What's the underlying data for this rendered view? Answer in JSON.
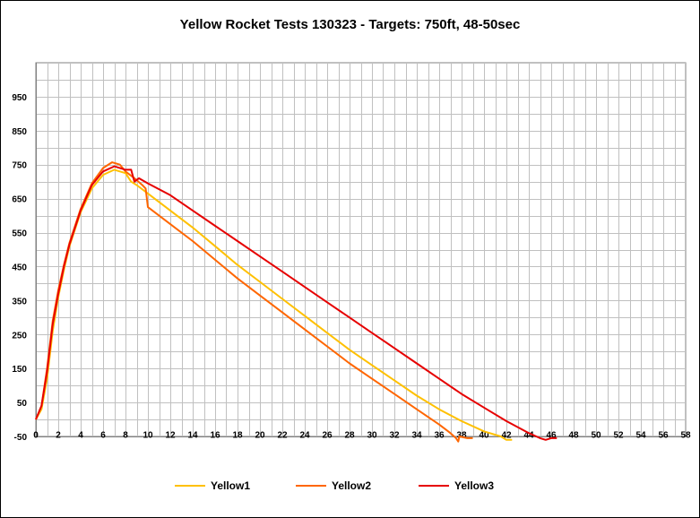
{
  "chart_data": {
    "type": "line",
    "title": "Yellow Rocket Tests 130323 - Targets: 750ft, 48-50sec",
    "xlabel": "",
    "ylabel": "",
    "xlim": [
      0,
      58
    ],
    "ylim": [
      -50,
      1050
    ],
    "x_ticks": [
      0,
      2,
      4,
      6,
      8,
      10,
      12,
      14,
      16,
      18,
      20,
      22,
      24,
      26,
      28,
      30,
      32,
      34,
      36,
      38,
      40,
      42,
      44,
      46,
      48,
      50,
      52,
      54,
      56,
      58
    ],
    "y_ticks": [
      -50,
      50,
      150,
      250,
      350,
      450,
      550,
      650,
      750,
      850,
      950
    ],
    "grid": true,
    "legend_position": "bottom",
    "series": [
      {
        "name": "Yellow1",
        "color": "#FFC000",
        "points": [
          [
            0,
            0
          ],
          [
            0.5,
            30
          ],
          [
            1,
            120
          ],
          [
            1.5,
            260
          ],
          [
            2,
            360
          ],
          [
            2.5,
            440
          ],
          [
            3,
            510
          ],
          [
            4,
            610
          ],
          [
            5,
            680
          ],
          [
            6,
            720
          ],
          [
            7,
            735
          ],
          [
            8,
            725
          ],
          [
            8.5,
            700
          ],
          [
            9,
            690
          ],
          [
            10,
            665
          ],
          [
            12,
            615
          ],
          [
            14,
            565
          ],
          [
            16,
            510
          ],
          [
            18,
            455
          ],
          [
            20,
            405
          ],
          [
            22,
            355
          ],
          [
            24,
            305
          ],
          [
            26,
            255
          ],
          [
            28,
            205
          ],
          [
            30,
            160
          ],
          [
            32,
            115
          ],
          [
            34,
            70
          ],
          [
            36,
            30
          ],
          [
            38,
            -5
          ],
          [
            40,
            -35
          ],
          [
            41.5,
            -50
          ],
          [
            42,
            -60
          ],
          [
            42.5,
            -60
          ]
        ]
      },
      {
        "name": "Yellow2",
        "color": "#FF6600",
        "points": [
          [
            0,
            0
          ],
          [
            0.5,
            40
          ],
          [
            1,
            150
          ],
          [
            1.5,
            290
          ],
          [
            2,
            380
          ],
          [
            2.5,
            455
          ],
          [
            3,
            520
          ],
          [
            4,
            620
          ],
          [
            5,
            695
          ],
          [
            6,
            740
          ],
          [
            6.8,
            757
          ],
          [
            7.5,
            750
          ],
          [
            8,
            730
          ],
          [
            8.8,
            710
          ],
          [
            9.5,
            690
          ],
          [
            9.8,
            680
          ],
          [
            10,
            625
          ],
          [
            12,
            575
          ],
          [
            14,
            525
          ],
          [
            16,
            470
          ],
          [
            18,
            415
          ],
          [
            20,
            365
          ],
          [
            22,
            315
          ],
          [
            24,
            265
          ],
          [
            26,
            215
          ],
          [
            28,
            165
          ],
          [
            30,
            120
          ],
          [
            32,
            75
          ],
          [
            34,
            30
          ],
          [
            36,
            -15
          ],
          [
            37,
            -40
          ],
          [
            37.5,
            -55
          ],
          [
            37.7,
            -65
          ],
          [
            37.8,
            -50
          ],
          [
            38.5,
            -55
          ],
          [
            39,
            -55
          ]
        ]
      },
      {
        "name": "Yellow3",
        "color": "#E60000",
        "points": [
          [
            0,
            0
          ],
          [
            0.5,
            40
          ],
          [
            1,
            140
          ],
          [
            1.5,
            280
          ],
          [
            2,
            370
          ],
          [
            2.5,
            450
          ],
          [
            3,
            515
          ],
          [
            4,
            615
          ],
          [
            5,
            690
          ],
          [
            6,
            730
          ],
          [
            7,
            745
          ],
          [
            8,
            735
          ],
          [
            8.5,
            735
          ],
          [
            8.8,
            700
          ],
          [
            9.2,
            710
          ],
          [
            10,
            695
          ],
          [
            12,
            660
          ],
          [
            14,
            615
          ],
          [
            16,
            570
          ],
          [
            18,
            525
          ],
          [
            20,
            480
          ],
          [
            22,
            435
          ],
          [
            24,
            390
          ],
          [
            26,
            345
          ],
          [
            28,
            300
          ],
          [
            30,
            255
          ],
          [
            32,
            210
          ],
          [
            34,
            165
          ],
          [
            36,
            120
          ],
          [
            38,
            75
          ],
          [
            40,
            35
          ],
          [
            42,
            -5
          ],
          [
            44,
            -40
          ],
          [
            45,
            -55
          ],
          [
            45.5,
            -60
          ],
          [
            46,
            -55
          ],
          [
            46.5,
            -55
          ]
        ]
      }
    ]
  }
}
